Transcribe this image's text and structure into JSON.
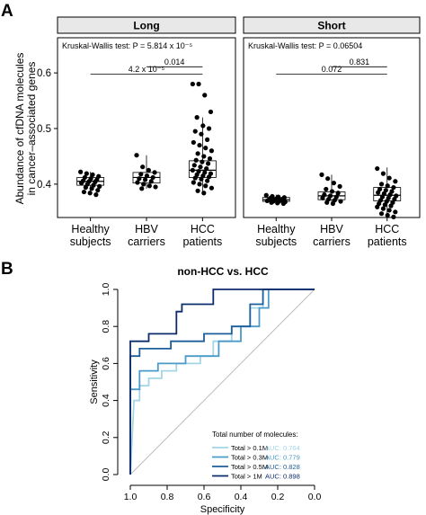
{
  "colors": {
    "axis": "#000000",
    "strip_bg": "#e8e8e8",
    "box_fill": "#ffffff",
    "point": "#000000",
    "diagonal": "#bbbbbb",
    "roc": [
      "#a4d5e6",
      "#4a9bc9",
      "#1d5f9a",
      "#0d2c6b"
    ]
  },
  "chart_data": [
    {
      "panel_label": "A",
      "type": "box",
      "ylabel": "Abundance of cfDNA molecules\nin cancer–associated genes",
      "ylim": [
        0.34,
        0.66
      ],
      "yticks": [
        0.4,
        0.5,
        0.6
      ],
      "ytick_labels": [
        "0.4",
        "0.5",
        "0.6"
      ],
      "categories": [
        "Healthy\nsubjects",
        "HBV\ncarriers",
        "HCC\npatients"
      ],
      "facets": [
        {
          "name": "Long",
          "test_label": "Kruskal-Wallis test: P = 5.814 x 10⁻⁵",
          "comparisons": [
            {
              "from": 1,
              "to": 2,
              "label": "0.014",
              "y": 0.611
            },
            {
              "from": 0,
              "to": 2,
              "label": "4.2 x 10⁻⁵",
              "y": 0.598
            }
          ],
          "boxes": [
            {
              "q1": 0.398,
              "median": 0.405,
              "q3": 0.412,
              "whisker_low": 0.385,
              "whisker_high": 0.422
            },
            {
              "q1": 0.402,
              "median": 0.412,
              "q3": 0.421,
              "whisker_low": 0.392,
              "whisker_high": 0.452
            },
            {
              "q1": 0.412,
              "median": 0.425,
              "q3": 0.442,
              "whisker_low": 0.383,
              "whisker_high": 0.52
            }
          ],
          "points": [
            [
              0.422,
              0.419,
              0.417,
              0.414,
              0.412,
              0.41,
              0.408,
              0.406,
              0.405,
              0.404,
              0.402,
              0.4,
              0.398,
              0.396,
              0.394,
              0.392,
              0.389,
              0.386,
              0.384,
              0.381
            ],
            [
              0.452,
              0.431,
              0.425,
              0.421,
              0.418,
              0.415,
              0.412,
              0.41,
              0.408,
              0.405,
              0.403,
              0.4,
              0.397,
              0.395,
              0.392
            ],
            [
              0.58,
              0.58,
              0.56,
              0.53,
              0.52,
              0.505,
              0.5,
              0.495,
              0.49,
              0.48,
              0.475,
              0.47,
              0.465,
              0.46,
              0.455,
              0.45,
              0.446,
              0.443,
              0.44,
              0.437,
              0.434,
              0.431,
              0.428,
              0.425,
              0.423,
              0.421,
              0.419,
              0.417,
              0.415,
              0.413,
              0.411,
              0.409,
              0.406,
              0.403,
              0.4,
              0.397,
              0.393,
              0.388,
              0.384
            ]
          ]
        },
        {
          "name": "Short",
          "test_label": "Kruskal-Wallis test: P = 0.06504",
          "comparisons": [
            {
              "from": 1,
              "to": 2,
              "label": "0.831",
              "y": 0.611
            },
            {
              "from": 0,
              "to": 2,
              "label": "0.072",
              "y": 0.598
            }
          ],
          "boxes": [
            {
              "q1": 0.369,
              "median": 0.372,
              "q3": 0.376,
              "whisker_low": 0.365,
              "whisker_high": 0.381
            },
            {
              "q1": 0.372,
              "median": 0.379,
              "q3": 0.386,
              "whisker_low": 0.364,
              "whisker_high": 0.417
            },
            {
              "q1": 0.37,
              "median": 0.38,
              "q3": 0.394,
              "whisker_low": 0.34,
              "whisker_high": 0.43
            }
          ],
          "points": [
            [
              0.38,
              0.378,
              0.377,
              0.376,
              0.375,
              0.374,
              0.373,
              0.372,
              0.372,
              0.371,
              0.37,
              0.369,
              0.369,
              0.368,
              0.367,
              0.366,
              0.365
            ],
            [
              0.417,
              0.41,
              0.402,
              0.396,
              0.391,
              0.387,
              0.384,
              0.381,
              0.379,
              0.377,
              0.375,
              0.373,
              0.371,
              0.369,
              0.367,
              0.365
            ],
            [
              0.428,
              0.419,
              0.411,
              0.405,
              0.4,
              0.397,
              0.394,
              0.391,
              0.389,
              0.387,
              0.385,
              0.383,
              0.381,
              0.379,
              0.377,
              0.375,
              0.373,
              0.371,
              0.369,
              0.367,
              0.365,
              0.363,
              0.361,
              0.359,
              0.356,
              0.353,
              0.35,
              0.347,
              0.344,
              0.341
            ]
          ]
        }
      ]
    },
    {
      "panel_label": "B",
      "type": "line",
      "title": "non-HCC vs. HCC",
      "xlabel": "Specificity",
      "ylabel": "Sensitivity",
      "xlim": [
        1.0,
        0.0
      ],
      "ylim": [
        0.0,
        1.0
      ],
      "xticks": [
        "1.0",
        "0.8",
        "0.6",
        "0.4",
        "0.2",
        "0.0"
      ],
      "yticks": [
        "0.0",
        "0.2",
        "0.4",
        "0.6",
        "0.8",
        "1.0"
      ],
      "legend_title": "Total number of molecules:",
      "legend_position": "bottom-right",
      "series": [
        {
          "name": "Total > 0.1M",
          "auc": "AUC: 0.764",
          "points": [
            [
              1.0,
              0.0
            ],
            [
              0.98,
              0.4
            ],
            [
              0.95,
              0.4
            ],
            [
              0.95,
              0.48
            ],
            [
              0.9,
              0.48
            ],
            [
              0.9,
              0.52
            ],
            [
              0.83,
              0.52
            ],
            [
              0.83,
              0.56
            ],
            [
              0.75,
              0.56
            ],
            [
              0.75,
              0.6
            ],
            [
              0.62,
              0.6
            ],
            [
              0.62,
              0.64
            ],
            [
              0.55,
              0.64
            ],
            [
              0.55,
              0.72
            ],
            [
              0.45,
              0.72
            ],
            [
              0.45,
              0.8
            ],
            [
              0.35,
              0.8
            ],
            [
              0.35,
              0.9
            ],
            [
              0.28,
              0.9
            ],
            [
              0.28,
              1.0
            ],
            [
              0.0,
              1.0
            ]
          ]
        },
        {
          "name": "Total > 0.3M",
          "auc": "AUC: 0.779",
          "points": [
            [
              1.0,
              0.0
            ],
            [
              1.0,
              0.46
            ],
            [
              0.95,
              0.46
            ],
            [
              0.95,
              0.56
            ],
            [
              0.85,
              0.56
            ],
            [
              0.85,
              0.6
            ],
            [
              0.7,
              0.6
            ],
            [
              0.7,
              0.64
            ],
            [
              0.52,
              0.64
            ],
            [
              0.52,
              0.72
            ],
            [
              0.4,
              0.72
            ],
            [
              0.4,
              0.8
            ],
            [
              0.3,
              0.8
            ],
            [
              0.3,
              0.9
            ],
            [
              0.25,
              0.9
            ],
            [
              0.25,
              1.0
            ],
            [
              0.0,
              1.0
            ]
          ]
        },
        {
          "name": "Total > 0.5M",
          "auc": "AUC: 0.828",
          "points": [
            [
              1.0,
              0.0
            ],
            [
              1.0,
              0.64
            ],
            [
              0.95,
              0.64
            ],
            [
              0.95,
              0.68
            ],
            [
              0.78,
              0.68
            ],
            [
              0.78,
              0.72
            ],
            [
              0.6,
              0.72
            ],
            [
              0.6,
              0.76
            ],
            [
              0.45,
              0.76
            ],
            [
              0.45,
              0.8
            ],
            [
              0.35,
              0.8
            ],
            [
              0.35,
              0.92
            ],
            [
              0.28,
              0.92
            ],
            [
              0.28,
              1.0
            ],
            [
              0.0,
              1.0
            ]
          ]
        },
        {
          "name": "Total > 1M",
          "auc": "AUC: 0.898",
          "points": [
            [
              1.0,
              0.0
            ],
            [
              1.0,
              0.72
            ],
            [
              0.9,
              0.72
            ],
            [
              0.9,
              0.76
            ],
            [
              0.75,
              0.76
            ],
            [
              0.75,
              0.88
            ],
            [
              0.72,
              0.88
            ],
            [
              0.72,
              0.92
            ],
            [
              0.55,
              0.92
            ],
            [
              0.55,
              1.0
            ],
            [
              0.0,
              1.0
            ]
          ]
        }
      ]
    }
  ]
}
